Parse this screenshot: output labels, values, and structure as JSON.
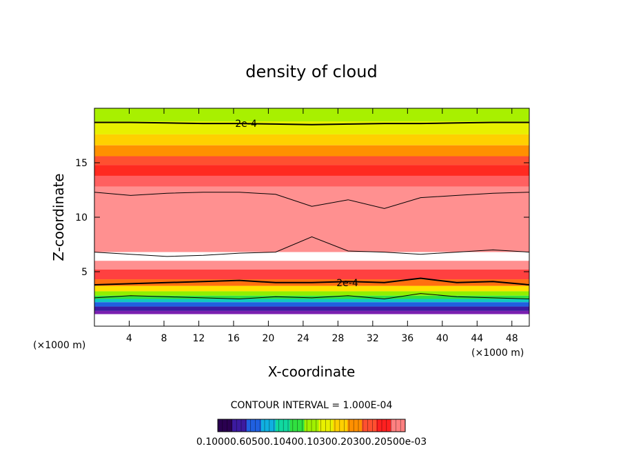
{
  "chart_data": {
    "type": "heatmap",
    "title": "density of cloud",
    "xlabel": "X-coordinate",
    "ylabel": "Z-coordinate",
    "x_unit_left": "(×1000 m)",
    "x_unit_right": "(×1000 m)",
    "xlim": [
      0,
      50
    ],
    "ylim": [
      0,
      20
    ],
    "x_ticks": [
      4,
      8,
      12,
      16,
      20,
      24,
      28,
      32,
      36,
      40,
      44,
      48
    ],
    "y_ticks": [
      5,
      10,
      15
    ],
    "contour_labels": [
      "2e-4",
      "2e-4"
    ],
    "contour_interval_text": "CONTOUR INTERVAL = 1.000E-04",
    "colorbar_labels_text": "0.10000.60500.10400.10300.20300.20500e-03",
    "colorbar_colors": [
      "#2a0050",
      "#3c1aa0",
      "#2060e0",
      "#10b0e0",
      "#10d8a0",
      "#30e040",
      "#a0f000",
      "#e8f000",
      "#ffd000",
      "#ff9000",
      "#ff5030",
      "#ff2020",
      "#ff8080"
    ],
    "field_bands": [
      {
        "z": 19.5,
        "color": "#a8f000"
      },
      {
        "z": 18.8,
        "color": "#e8f000"
      },
      {
        "z": 17.6,
        "color": "#ffd000"
      },
      {
        "z": 16.6,
        "color": "#ff9000"
      },
      {
        "z": 15.6,
        "color": "#ff5030"
      },
      {
        "z": 14.8,
        "color": "#ff2a20"
      },
      {
        "z": 13.8,
        "color": "#ff6060"
      },
      {
        "z": 12.8,
        "color": "#ff9090"
      },
      {
        "z": 6.8,
        "color": "#ffffff"
      },
      {
        "z": 6.0,
        "color": "#ff9090"
      },
      {
        "z": 5.2,
        "color": "#ff4040"
      },
      {
        "z": 4.3,
        "color": "#ff7010"
      },
      {
        "z": 3.7,
        "color": "#ffe000"
      },
      {
        "z": 3.2,
        "color": "#90f000"
      },
      {
        "z": 2.8,
        "color": "#30e040"
      },
      {
        "z": 2.5,
        "color": "#10c8c0"
      },
      {
        "z": 2.2,
        "color": "#2060e0"
      },
      {
        "z": 1.8,
        "color": "#3c1aa0"
      },
      {
        "z": 1.4,
        "color": "#7a20b0"
      },
      {
        "z": 1.1,
        "color": "#ffffff"
      }
    ],
    "contours": [
      {
        "z": [
          18.7,
          18.7,
          18.65,
          18.6,
          18.6,
          18.55,
          18.5,
          18.55,
          18.6,
          18.6,
          18.65,
          18.7,
          18.7
        ],
        "weight": "heavy"
      },
      {
        "z": [
          12.3,
          12.0,
          12.2,
          12.3,
          12.3,
          12.1,
          11.0,
          11.6,
          10.8,
          11.8,
          12.0,
          12.2,
          12.3
        ],
        "weight": "light"
      },
      {
        "z": [
          6.8,
          6.6,
          6.4,
          6.5,
          6.7,
          6.8,
          8.2,
          6.9,
          6.8,
          6.6,
          6.8,
          7.0,
          6.8
        ],
        "weight": "light"
      },
      {
        "z": [
          3.8,
          3.9,
          4.0,
          4.1,
          4.2,
          4.0,
          4.0,
          4.1,
          4.0,
          4.4,
          4.0,
          4.1,
          3.8
        ],
        "weight": "heavy"
      },
      {
        "z": [
          2.6,
          2.8,
          2.7,
          2.6,
          2.5,
          2.7,
          2.6,
          2.8,
          2.5,
          3.0,
          2.7,
          2.6,
          2.5
        ],
        "weight": "light"
      }
    ]
  }
}
